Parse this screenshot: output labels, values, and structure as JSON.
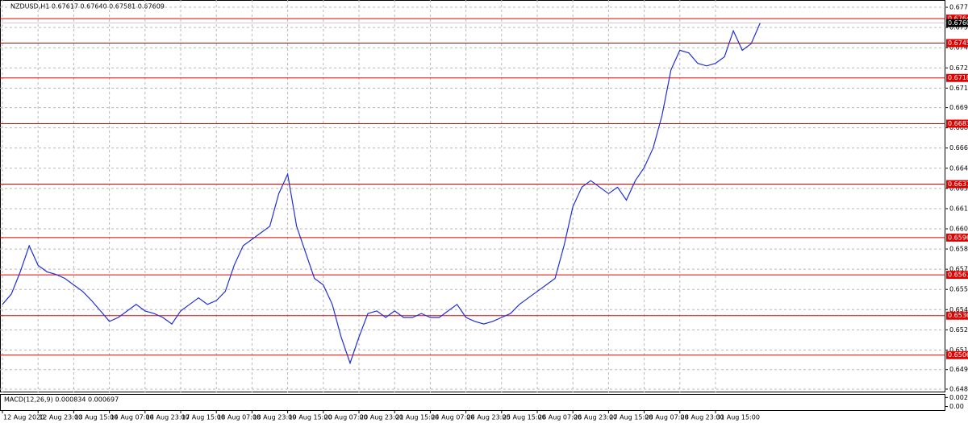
{
  "chart_data": {
    "type": "line",
    "title": "NZDUSD,H1 0.67617 0.67640 0.67581 0.67609",
    "color": "#1f2fd6",
    "grid": true,
    "categories": [
      "12 Aug 2020",
      null,
      null,
      null,
      "12 Aug 23:00",
      null,
      null,
      null,
      "13 Aug 15:00",
      null,
      null,
      null,
      "14 Aug 07:00",
      null,
      null,
      null,
      "14 Aug 23:00",
      null,
      null,
      null,
      "17 Aug 15:00",
      null,
      null,
      null,
      "18 Aug 07:00",
      null,
      null,
      null,
      "18 Aug 23:00",
      null,
      null,
      null,
      "19 Aug 15:00",
      null,
      null,
      null,
      "20 Aug 07:00",
      null,
      null,
      null,
      "20 Aug 23:00",
      null,
      null,
      null,
      "21 Aug 15:00",
      null,
      null,
      null,
      "24 Aug 07:00",
      null,
      null,
      null,
      "24 Aug 23:00",
      null,
      null,
      null,
      "25 Aug 15:00",
      null,
      null,
      null,
      "26 Aug 07:00",
      null,
      null,
      null,
      "26 Aug 23:00",
      null,
      null,
      null,
      "27 Aug 15:00",
      null,
      null,
      null,
      "28 Aug 07:00",
      null,
      null,
      null,
      "28 Aug 23:00",
      null,
      null,
      null,
      "31 Aug 15:00",
      null,
      null,
      null,
      null,
      null
    ],
    "values": [
      0.6545,
      0.6553,
      0.657,
      0.659,
      0.6575,
      0.657,
      0.6568,
      0.6565,
      0.656,
      0.6555,
      0.6548,
      0.654,
      0.6532,
      0.6535,
      0.654,
      0.6545,
      0.654,
      0.6538,
      0.6535,
      0.653,
      0.654,
      0.6545,
      0.655,
      0.6545,
      0.6548,
      0.6555,
      0.6575,
      0.659,
      0.6595,
      0.66,
      0.6605,
      0.663,
      0.6645,
      0.6605,
      0.6585,
      0.6565,
      0.656,
      0.6545,
      0.652,
      0.65,
      0.652,
      0.6538,
      0.654,
      0.6535,
      0.654,
      0.6535,
      0.6535,
      0.6538,
      0.6535,
      0.6535,
      0.654,
      0.6545,
      0.6535,
      0.6532,
      0.653,
      0.6532,
      0.6535,
      0.6538,
      0.6545,
      0.655,
      0.6555,
      0.656,
      0.6565,
      0.659,
      0.662,
      0.6635,
      0.664,
      0.6635,
      0.663,
      0.6635,
      0.6625,
      0.664,
      0.665,
      0.6665,
      0.669,
      0.6725,
      0.674,
      0.6738,
      0.673,
      0.6728,
      0.673,
      0.6735,
      0.6755,
      0.674,
      0.6745,
      0.67609
    ],
    "ylim": [
      0.64775,
      0.67786
    ],
    "yticks": [
      {
        "value": 0.6773,
        "label": "0.67730"
      },
      {
        "value": 0.67575,
        "label": "0.67575"
      },
      {
        "value": 0.6742,
        "label": "0.67420"
      },
      {
        "value": 0.67265,
        "label": "0.67265"
      },
      {
        "value": 0.6711,
        "label": "0.67110"
      },
      {
        "value": 0.6696,
        "label": "0.66960"
      },
      {
        "value": 0.66805,
        "label": "0.66805"
      },
      {
        "value": 0.6665,
        "label": "0.66650"
      },
      {
        "value": 0.66495,
        "label": "0.66495"
      },
      {
        "value": 0.6634,
        "label": "0.66340"
      },
      {
        "value": 0.66185,
        "label": "0.66185"
      },
      {
        "value": 0.6603,
        "label": "0.66030"
      },
      {
        "value": 0.65875,
        "label": "0.65875"
      },
      {
        "value": 0.6572,
        "label": "0.65720"
      },
      {
        "value": 0.65565,
        "label": "0.65565"
      },
      {
        "value": 0.6541,
        "label": "0.65410"
      },
      {
        "value": 0.65255,
        "label": "0.65255"
      },
      {
        "value": 0.651,
        "label": "0.65100"
      },
      {
        "value": 0.6495,
        "label": "0.64950"
      },
      {
        "value": 0.648,
        "label": "0.64800"
      }
    ],
    "levels": [
      0.67643,
      0.67455,
      0.67188,
      0.66837,
      0.66373,
      0.65963,
      0.65677,
      0.65364,
      0.65061
    ],
    "level_color": "#e00000",
    "current_price": 0.67609,
    "macd": {
      "title": "MACD(12,26,9) 0.000834 0.000697",
      "ylim": [
        -0.00116,
        0.00376
      ],
      "yticks": [
        0.002896,
        {
          "value": 0,
          "label": "0.00"
        }
      ]
    }
  }
}
